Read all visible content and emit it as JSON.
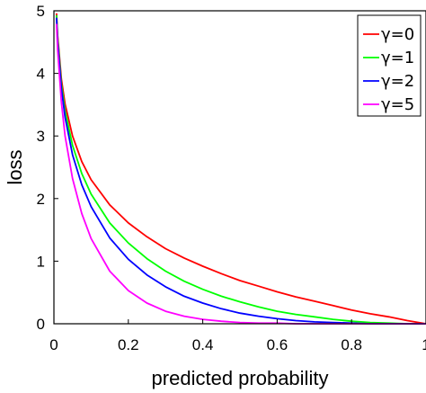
{
  "chart_data": {
    "type": "line",
    "xlabel": "predicted probability",
    "ylabel": "loss",
    "xlim": [
      0,
      1
    ],
    "ylim": [
      0,
      5
    ],
    "x_ticks": [
      0,
      0.2,
      0.4,
      0.6,
      0.8,
      1
    ],
    "x_tick_labels": [
      "0",
      "0.2",
      "0.4",
      "0.6",
      "0.8",
      "1"
    ],
    "y_ticks": [
      0,
      1,
      2,
      3,
      4,
      5
    ],
    "y_tick_labels": [
      "0",
      "1",
      "2",
      "3",
      "4",
      "5"
    ],
    "grid": false,
    "legend_position": "top-right",
    "series": [
      {
        "name": "γ=0",
        "color": "#ff0000",
        "x": [
          0.007,
          0.01,
          0.02,
          0.03,
          0.05,
          0.075,
          0.1,
          0.15,
          0.2,
          0.25,
          0.3,
          0.35,
          0.4,
          0.45,
          0.5,
          0.55,
          0.6,
          0.65,
          0.7,
          0.75,
          0.8,
          0.85,
          0.9,
          0.95,
          1.0
        ],
        "y": [
          4.96,
          4.61,
          3.91,
          3.51,
          3.0,
          2.59,
          2.3,
          1.9,
          1.61,
          1.39,
          1.2,
          1.05,
          0.92,
          0.8,
          0.69,
          0.6,
          0.51,
          0.43,
          0.36,
          0.29,
          0.22,
          0.16,
          0.11,
          0.05,
          0.0
        ]
      },
      {
        "name": "γ=1",
        "color": "#00ff00",
        "x": [
          0.007,
          0.01,
          0.02,
          0.03,
          0.05,
          0.075,
          0.1,
          0.15,
          0.2,
          0.25,
          0.3,
          0.35,
          0.4,
          0.45,
          0.5,
          0.55,
          0.6,
          0.65,
          0.7,
          0.75,
          0.8,
          0.85,
          0.9,
          0.95,
          1.0
        ],
        "y": [
          4.93,
          4.56,
          3.83,
          3.4,
          2.85,
          2.4,
          2.07,
          1.61,
          1.29,
          1.04,
          0.84,
          0.68,
          0.55,
          0.44,
          0.35,
          0.27,
          0.2,
          0.15,
          0.11,
          0.07,
          0.04,
          0.02,
          0.01,
          0.0,
          0.0
        ]
      },
      {
        "name": "γ=2",
        "color": "#0000ff",
        "x": [
          0.007,
          0.01,
          0.02,
          0.03,
          0.05,
          0.075,
          0.1,
          0.15,
          0.2,
          0.25,
          0.3,
          0.35,
          0.4,
          0.45,
          0.5,
          0.55,
          0.6,
          0.65,
          0.7,
          0.75,
          0.8,
          0.85,
          0.9,
          0.95,
          1.0
        ],
        "y": [
          4.89,
          4.51,
          3.76,
          3.3,
          2.7,
          2.22,
          1.87,
          1.37,
          1.03,
          0.78,
          0.59,
          0.44,
          0.33,
          0.24,
          0.17,
          0.12,
          0.08,
          0.05,
          0.03,
          0.02,
          0.01,
          0.0,
          0.0,
          0.0,
          0.0
        ]
      },
      {
        "name": "γ=5",
        "color": "#ff00ff",
        "x": [
          0.007,
          0.01,
          0.02,
          0.03,
          0.05,
          0.075,
          0.1,
          0.15,
          0.2,
          0.25,
          0.3,
          0.35,
          0.4,
          0.45,
          0.5,
          0.55,
          0.6,
          0.65,
          0.7,
          0.75,
          0.8,
          0.85,
          0.9,
          0.95,
          1.0
        ],
        "y": [
          4.79,
          4.38,
          3.54,
          3.0,
          2.32,
          1.76,
          1.36,
          0.84,
          0.53,
          0.33,
          0.2,
          0.12,
          0.07,
          0.04,
          0.02,
          0.01,
          0.01,
          0.0,
          0.0,
          0.0,
          0.0,
          0.0,
          0.0,
          0.0,
          0.0
        ]
      }
    ]
  }
}
